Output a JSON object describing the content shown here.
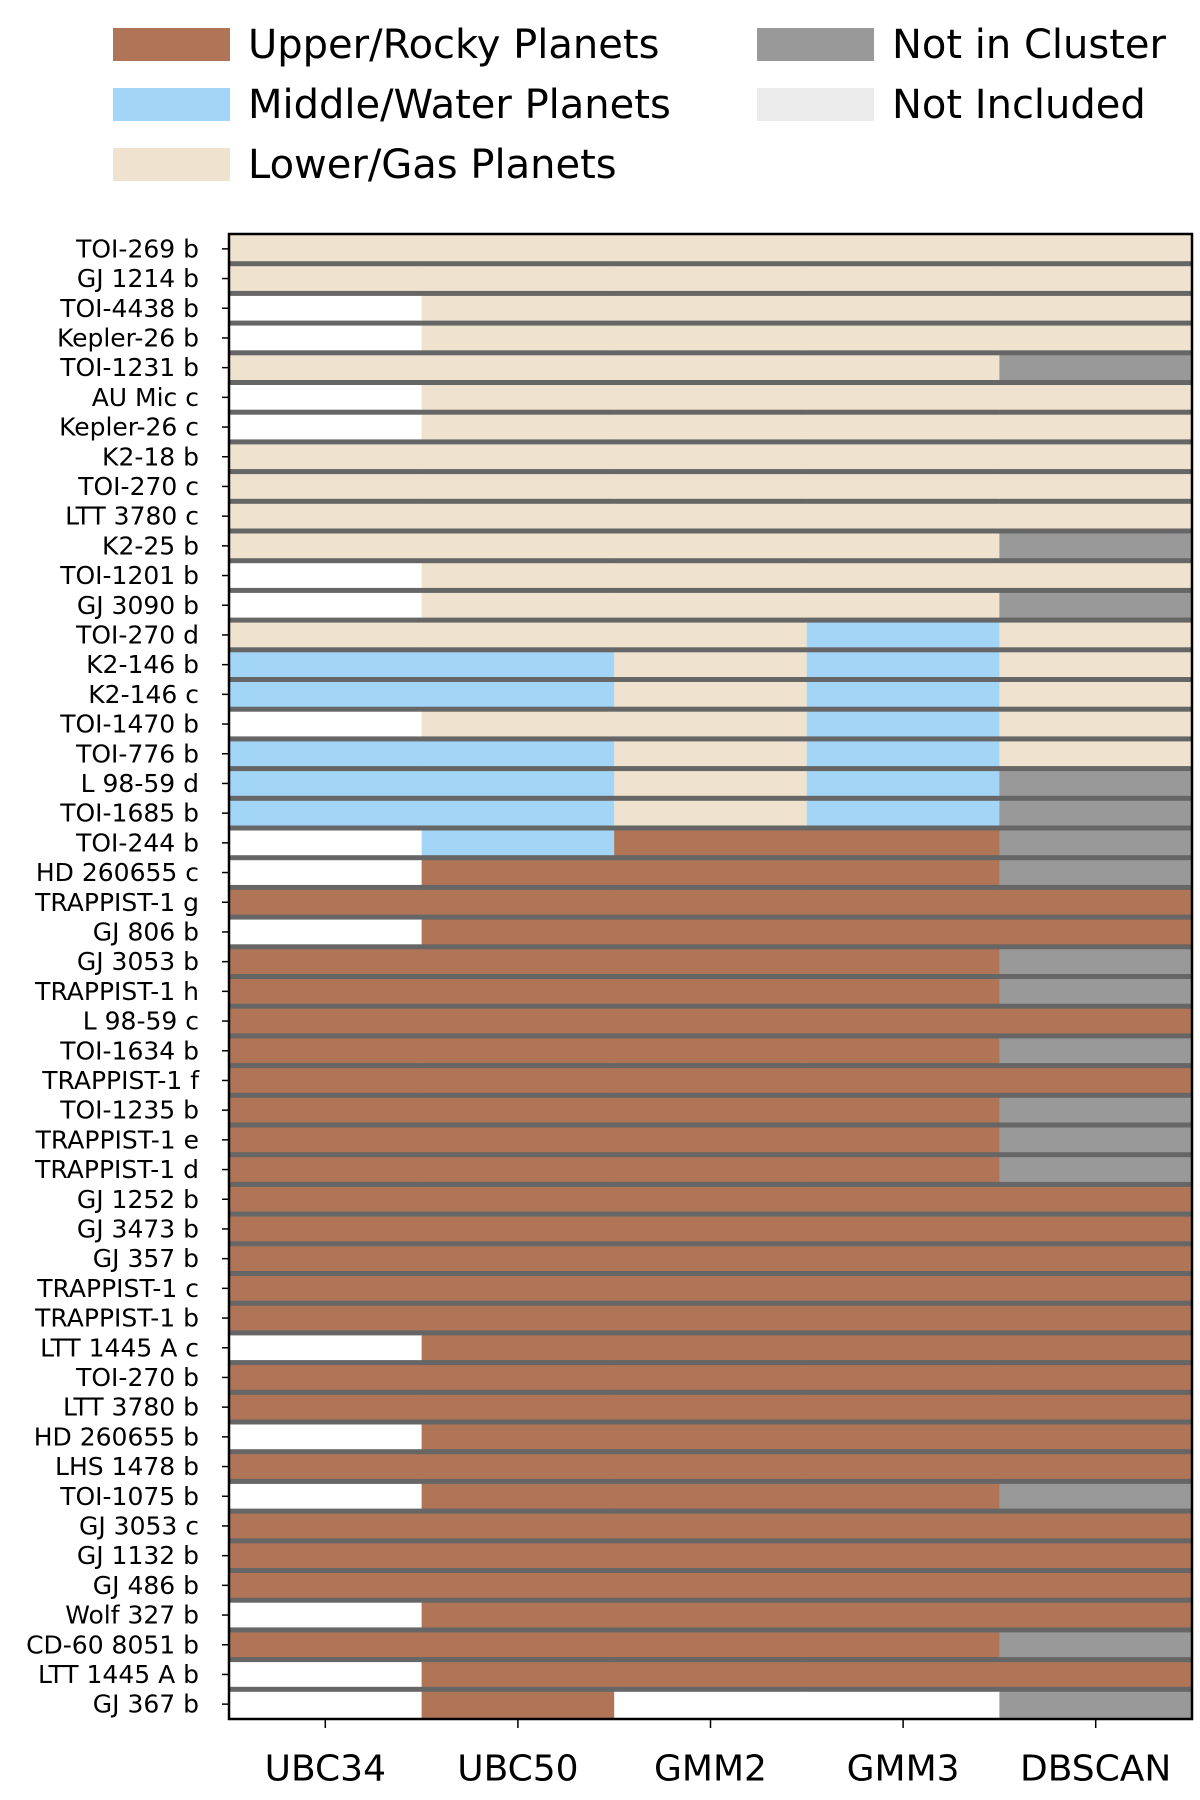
{
  "chart_data": {
    "type": "heatmap",
    "legend": {
      "placement": "top",
      "entries": [
        {
          "key": "U",
          "label": "Upper/Rocky Planets",
          "color": "#b07457"
        },
        {
          "key": "M",
          "label": "Middle/Water Planets",
          "color": "#a3d5f7"
        },
        {
          "key": "L",
          "label": "Lower/Gas Planets",
          "color": "#efe3d0"
        },
        {
          "key": "N",
          "label": "Not in Cluster",
          "color": "#999999"
        },
        {
          "key": "X",
          "label": "Not Included",
          "color": "#ffffff"
        }
      ]
    },
    "separator_color": "#666666",
    "columns": [
      "UBC34",
      "UBC50",
      "GMM2",
      "GMM3",
      "DBSCAN"
    ],
    "rows": [
      {
        "name": "TOI-269 b",
        "values": [
          "L",
          "L",
          "L",
          "L",
          "L"
        ]
      },
      {
        "name": "GJ 1214 b",
        "values": [
          "L",
          "L",
          "L",
          "L",
          "L"
        ]
      },
      {
        "name": "TOI-4438 b",
        "values": [
          "X",
          "L",
          "L",
          "L",
          "L"
        ]
      },
      {
        "name": "Kepler-26 b",
        "values": [
          "X",
          "L",
          "L",
          "L",
          "L"
        ]
      },
      {
        "name": "TOI-1231 b",
        "values": [
          "L",
          "L",
          "L",
          "L",
          "N"
        ]
      },
      {
        "name": "AU Mic c",
        "values": [
          "X",
          "L",
          "L",
          "L",
          "L"
        ]
      },
      {
        "name": "Kepler-26 c",
        "values": [
          "X",
          "L",
          "L",
          "L",
          "L"
        ]
      },
      {
        "name": "K2-18 b",
        "values": [
          "L",
          "L",
          "L",
          "L",
          "L"
        ]
      },
      {
        "name": "TOI-270 c",
        "values": [
          "L",
          "L",
          "L",
          "L",
          "L"
        ]
      },
      {
        "name": "LTT 3780 c",
        "values": [
          "L",
          "L",
          "L",
          "L",
          "L"
        ]
      },
      {
        "name": "K2-25 b",
        "values": [
          "L",
          "L",
          "L",
          "L",
          "N"
        ]
      },
      {
        "name": "TOI-1201 b",
        "values": [
          "X",
          "L",
          "L",
          "L",
          "L"
        ]
      },
      {
        "name": "GJ 3090 b",
        "values": [
          "X",
          "L",
          "L",
          "L",
          "N"
        ]
      },
      {
        "name": "TOI-270 d",
        "values": [
          "L",
          "L",
          "L",
          "M",
          "L"
        ]
      },
      {
        "name": "K2-146 b",
        "values": [
          "M",
          "M",
          "L",
          "M",
          "L"
        ]
      },
      {
        "name": "K2-146 c",
        "values": [
          "M",
          "M",
          "L",
          "M",
          "L"
        ]
      },
      {
        "name": "TOI-1470 b",
        "values": [
          "X",
          "L",
          "L",
          "M",
          "L"
        ]
      },
      {
        "name": "TOI-776 b",
        "values": [
          "M",
          "M",
          "L",
          "M",
          "L"
        ]
      },
      {
        "name": "L 98-59 d",
        "values": [
          "M",
          "M",
          "L",
          "M",
          "N"
        ]
      },
      {
        "name": "TOI-1685 b",
        "values": [
          "M",
          "M",
          "L",
          "M",
          "N"
        ]
      },
      {
        "name": "TOI-244 b",
        "values": [
          "X",
          "M",
          "U",
          "U",
          "N"
        ]
      },
      {
        "name": "HD 260655 c",
        "values": [
          "X",
          "U",
          "U",
          "U",
          "N"
        ]
      },
      {
        "name": "TRAPPIST-1 g",
        "values": [
          "U",
          "U",
          "U",
          "U",
          "U"
        ]
      },
      {
        "name": "GJ 806 b",
        "values": [
          "X",
          "U",
          "U",
          "U",
          "U"
        ]
      },
      {
        "name": "GJ 3053 b",
        "values": [
          "U",
          "U",
          "U",
          "U",
          "N"
        ]
      },
      {
        "name": "TRAPPIST-1 h",
        "values": [
          "U",
          "U",
          "U",
          "U",
          "N"
        ]
      },
      {
        "name": "L 98-59 c",
        "values": [
          "U",
          "U",
          "U",
          "U",
          "U"
        ]
      },
      {
        "name": "TOI-1634 b",
        "values": [
          "U",
          "U",
          "U",
          "U",
          "N"
        ]
      },
      {
        "name": "TRAPPIST-1 f",
        "values": [
          "U",
          "U",
          "U",
          "U",
          "U"
        ]
      },
      {
        "name": "TOI-1235 b",
        "values": [
          "U",
          "U",
          "U",
          "U",
          "N"
        ]
      },
      {
        "name": "TRAPPIST-1 e",
        "values": [
          "U",
          "U",
          "U",
          "U",
          "N"
        ]
      },
      {
        "name": "TRAPPIST-1 d",
        "values": [
          "U",
          "U",
          "U",
          "U",
          "N"
        ]
      },
      {
        "name": "GJ 1252 b",
        "values": [
          "U",
          "U",
          "U",
          "U",
          "U"
        ]
      },
      {
        "name": "GJ 3473 b",
        "values": [
          "U",
          "U",
          "U",
          "U",
          "U"
        ]
      },
      {
        "name": "GJ 357 b",
        "values": [
          "U",
          "U",
          "U",
          "U",
          "U"
        ]
      },
      {
        "name": "TRAPPIST-1 c",
        "values": [
          "U",
          "U",
          "U",
          "U",
          "U"
        ]
      },
      {
        "name": "TRAPPIST-1 b",
        "values": [
          "U",
          "U",
          "U",
          "U",
          "U"
        ]
      },
      {
        "name": "LTT 1445 A c",
        "values": [
          "X",
          "U",
          "U",
          "U",
          "U"
        ]
      },
      {
        "name": "TOI-270 b",
        "values": [
          "U",
          "U",
          "U",
          "U",
          "U"
        ]
      },
      {
        "name": "LTT 3780 b",
        "values": [
          "U",
          "U",
          "U",
          "U",
          "U"
        ]
      },
      {
        "name": "HD 260655 b",
        "values": [
          "X",
          "U",
          "U",
          "U",
          "U"
        ]
      },
      {
        "name": "LHS 1478 b",
        "values": [
          "U",
          "U",
          "U",
          "U",
          "U"
        ]
      },
      {
        "name": "TOI-1075 b",
        "values": [
          "X",
          "U",
          "U",
          "U",
          "N"
        ]
      },
      {
        "name": "GJ 3053 c",
        "values": [
          "U",
          "U",
          "U",
          "U",
          "U"
        ]
      },
      {
        "name": "GJ 1132 b",
        "values": [
          "U",
          "U",
          "U",
          "U",
          "U"
        ]
      },
      {
        "name": "GJ 486 b",
        "values": [
          "U",
          "U",
          "U",
          "U",
          "U"
        ]
      },
      {
        "name": "Wolf 327 b",
        "values": [
          "X",
          "U",
          "U",
          "U",
          "U"
        ]
      },
      {
        "name": "CD-60 8051 b",
        "values": [
          "U",
          "U",
          "U",
          "U",
          "N"
        ]
      },
      {
        "name": "LTT 1445 A b",
        "values": [
          "X",
          "U",
          "U",
          "U",
          "U"
        ]
      },
      {
        "name": "GJ 367 b",
        "values": [
          "X",
          "U",
          "X",
          "X",
          "N"
        ]
      }
    ]
  }
}
